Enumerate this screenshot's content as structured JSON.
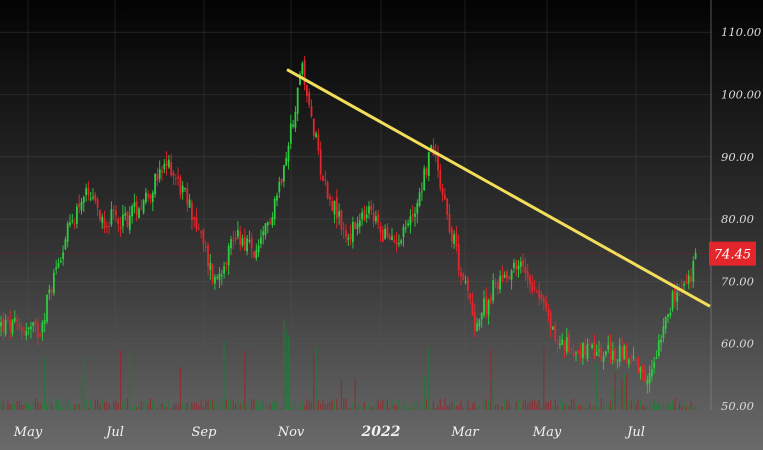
{
  "chart_data": {
    "type": "candlestick",
    "x_labels": [
      "May",
      "Jul",
      "Sep",
      "Nov",
      "2022",
      "Mar",
      "May",
      "Jul"
    ],
    "y_ticks": [
      "50.00",
      "60.00",
      "70.00",
      "80.00",
      "90.00",
      "100.00",
      "110.00"
    ],
    "ylim": [
      50,
      112
    ],
    "last_price": "74.45",
    "last_value": 74.45,
    "colors": {
      "up": "#2ecc40",
      "down": "#e3262b",
      "trendline": "#f2de5a",
      "price_badge": "#e3262b",
      "volume_up": "#1f7a3a",
      "volume_down": "#8f2a2e"
    },
    "trendline": {
      "start": [
        "Nov",
        104
      ],
      "end": [
        "Aug",
        66
      ]
    },
    "anchors": [
      [
        "Apr",
        63
      ],
      [
        "May",
        62
      ],
      [
        "May",
        75
      ],
      [
        "Jun",
        84
      ],
      [
        "Jun",
        80
      ],
      [
        "Jul",
        80
      ],
      [
        "Jul",
        84
      ],
      [
        "Aug",
        89
      ],
      [
        "Aug",
        81
      ],
      [
        "Sep",
        70
      ],
      [
        "Sep",
        78
      ],
      [
        "Oct",
        74
      ],
      [
        "Oct",
        86
      ],
      [
        "Nov",
        104
      ],
      [
        "Nov",
        86
      ],
      [
        "Dec",
        77
      ],
      [
        "Dec",
        81
      ],
      [
        "Jan",
        76
      ],
      [
        "Jan",
        80
      ],
      [
        "Feb",
        92
      ],
      [
        "Feb",
        76
      ],
      [
        "Mar",
        63
      ],
      [
        "Mar",
        70
      ],
      [
        "Apr",
        73
      ],
      [
        "Apr",
        69
      ],
      [
        "May",
        60
      ],
      [
        "Jun",
        58
      ],
      [
        "Jun",
        59
      ],
      [
        "Jul",
        53
      ],
      [
        "Jul",
        66
      ],
      [
        "Aug",
        70
      ],
      [
        "Aug",
        74
      ]
    ]
  }
}
